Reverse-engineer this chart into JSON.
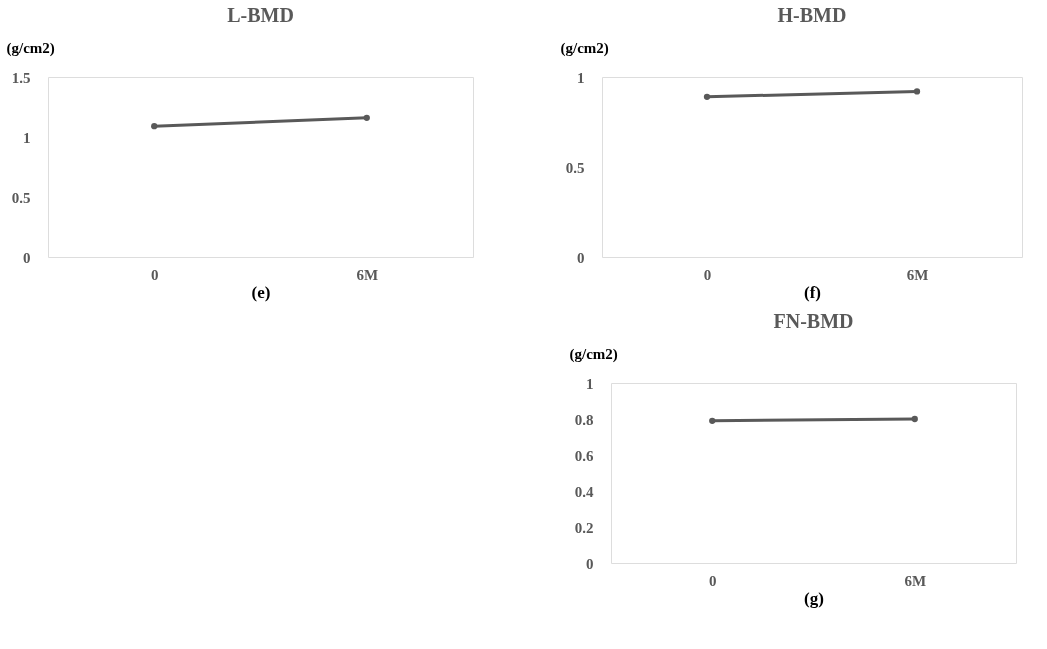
{
  "chart_data": [
    {
      "type": "line",
      "title": "L-BMD",
      "ylabel": "(g/cm2)",
      "xlabel": "(e)",
      "categories": [
        "0",
        "6M"
      ],
      "series": [
        {
          "color": "#595959",
          "values": [
            1.09,
            1.16
          ]
        }
      ],
      "ylim": [
        0,
        1.5
      ],
      "yticks": [
        0,
        0.5,
        1,
        1.5
      ],
      "marker": "circle",
      "grid": false
    },
    {
      "type": "line",
      "title": "H-BMD",
      "ylabel": "(g/cm2)",
      "xlabel": "(f)",
      "categories": [
        "0",
        "6M"
      ],
      "series": [
        {
          "color": "#595959",
          "values": [
            0.89,
            0.92
          ]
        }
      ],
      "ylim": [
        0,
        1
      ],
      "yticks": [
        0,
        0.5,
        1
      ],
      "marker": "circle",
      "grid": false
    },
    {
      "type": "line",
      "title": "FN-BMD",
      "ylabel": "(g/cm2)",
      "xlabel": "(g)",
      "categories": [
        "0",
        "6M"
      ],
      "series": [
        {
          "color": "#595959",
          "values": [
            0.79,
            0.8
          ]
        }
      ],
      "ylim": [
        0,
        1
      ],
      "yticks": [
        0,
        0.2,
        0.4,
        0.6,
        0.8,
        1
      ],
      "marker": "circle",
      "grid": false
    }
  ]
}
